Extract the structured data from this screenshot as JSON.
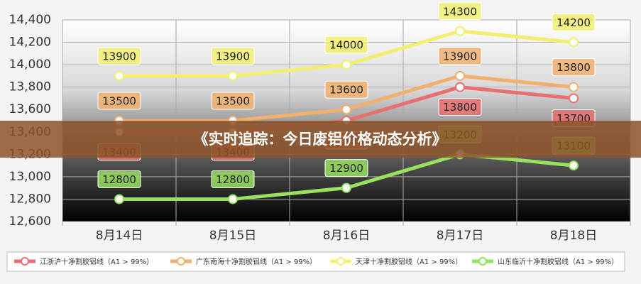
{
  "chart_data": {
    "type": "line",
    "title": "《实时追踪：今日废铝价格动态分析》",
    "categories": [
      "8月14日",
      "8月15日",
      "8月16日",
      "8月17日",
      "8月18日"
    ],
    "series": [
      {
        "name": "江浙沪十净割胶铝线（A1 > 99%）",
        "color": "#e87070",
        "values": [
          13400,
          13400,
          13500,
          13800,
          13700
        ]
      },
      {
        "name": "广东南海十净割胶铝线（A1 > 99%）",
        "color": "#f0b070",
        "values": [
          13500,
          13500,
          13600,
          13900,
          13800
        ]
      },
      {
        "name": "天津十净割胶铝线（A1 > 99%）",
        "color": "#f2ee70",
        "values": [
          13900,
          13900,
          14000,
          14300,
          14200
        ]
      },
      {
        "name": "山东临沂十净割胶铝线（A1 > 99%）",
        "color": "#98e060",
        "values": [
          12800,
          12800,
          12900,
          13200,
          13100
        ]
      }
    ],
    "ylim": [
      12600,
      14400
    ],
    "yticks": [
      {
        "value": 12600,
        "label": "12,600"
      },
      {
        "value": 12800,
        "label": "12,800"
      },
      {
        "value": 13000,
        "label": "13,000"
      },
      {
        "value": 13200,
        "label": "13,200"
      },
      {
        "value": 13400,
        "label": "13,400"
      },
      {
        "value": 13600,
        "label": "13,600"
      },
      {
        "value": 13800,
        "label": "13,800"
      },
      {
        "value": 14000,
        "label": "14,000"
      },
      {
        "value": 14200,
        "label": "14,200"
      },
      {
        "value": 14400,
        "label": "14,400"
      }
    ],
    "grid": true
  }
}
